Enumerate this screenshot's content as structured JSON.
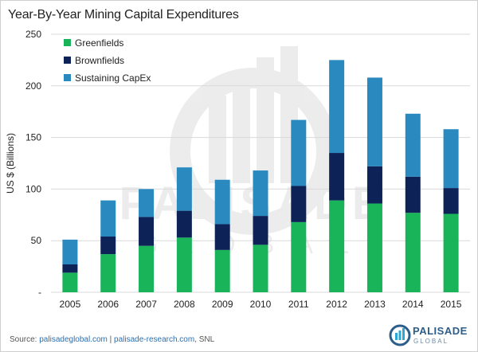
{
  "title": "Year-By-Year Mining Capital Expenditures",
  "chart_data": {
    "type": "bar",
    "stacked": true,
    "categories": [
      "2005",
      "2006",
      "2007",
      "2008",
      "2009",
      "2010",
      "2011",
      "2012",
      "2013",
      "2014",
      "2015"
    ],
    "series": [
      {
        "name": "Greenfields",
        "color": "#19b35a",
        "values": [
          19,
          37,
          45,
          53,
          41,
          46,
          68,
          89,
          86,
          77,
          76
        ]
      },
      {
        "name": "Brownfields",
        "color": "#0d2257",
        "values": [
          8,
          17,
          28,
          26,
          25,
          28,
          35,
          46,
          36,
          35,
          25
        ]
      },
      {
        "name": "Sustaining CapEx",
        "color": "#2a8abf",
        "values": [
          24,
          35,
          27,
          42,
          43,
          44,
          64,
          90,
          86,
          61,
          57
        ]
      }
    ],
    "ylabel": "US $ (Billions)",
    "xlabel": "",
    "ylim": [
      0,
      250
    ],
    "yticks": [
      0,
      50,
      100,
      150,
      200,
      250
    ],
    "ytick_labels": [
      "-",
      "50",
      "100",
      "150",
      "200",
      "250"
    ],
    "grid": true,
    "legend_position": "top-left"
  },
  "source": {
    "prefix": "Source: ",
    "link1": "palisadeglobal.com",
    "sep": " | ",
    "link2": "palisade-research.com",
    "suffix": ", SNL"
  },
  "logo": {
    "name": "PALISADE",
    "sub": "GLOBAL"
  },
  "watermark": {
    "name": "PALISADE",
    "sub": "GLOBAL"
  }
}
